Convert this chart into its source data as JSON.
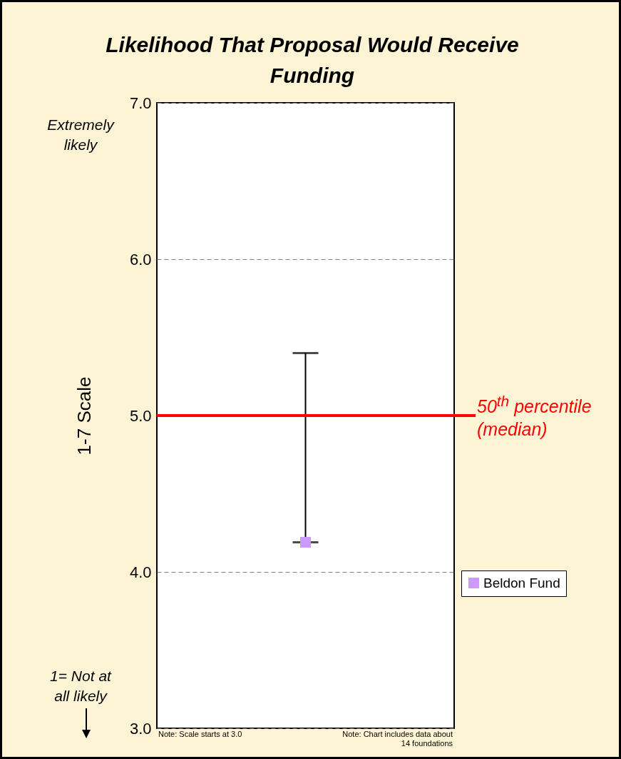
{
  "chart_data": {
    "type": "scatter",
    "title": "Likelihood That Proposal Would Receive Funding",
    "ylabel": "1-7 Scale",
    "categories": [
      null
    ],
    "series": [
      {
        "name": "Beldon Fund",
        "color": "#cc99ff",
        "values": [
          4.19
        ],
        "errors": [
          [
            4.19,
            5.4
          ]
        ]
      }
    ],
    "ylim": [
      3,
      7
    ],
    "yticks": [
      {
        "value": 3,
        "label": "3.0"
      },
      {
        "value": 4,
        "label": "4.0"
      },
      {
        "value": 5,
        "label": "5.0"
      },
      {
        "value": 6,
        "label": "6.0"
      },
      {
        "value": 7,
        "label": "7.0"
      }
    ],
    "grid": "y",
    "legend": "right",
    "marker": "square",
    "tick_labels": "y",
    "ref_lines": [
      {
        "axis": "y",
        "value": 5,
        "label": "50$^{th}$ percentile (median)",
        "color": "#ff0000"
      }
    ],
    "annotations": [
      "Extremely likely",
      "1= Not at all likely",
      "Note: Scale starts at 3.0",
      "Note: Chart includes data about 14 foundations"
    ]
  }
}
